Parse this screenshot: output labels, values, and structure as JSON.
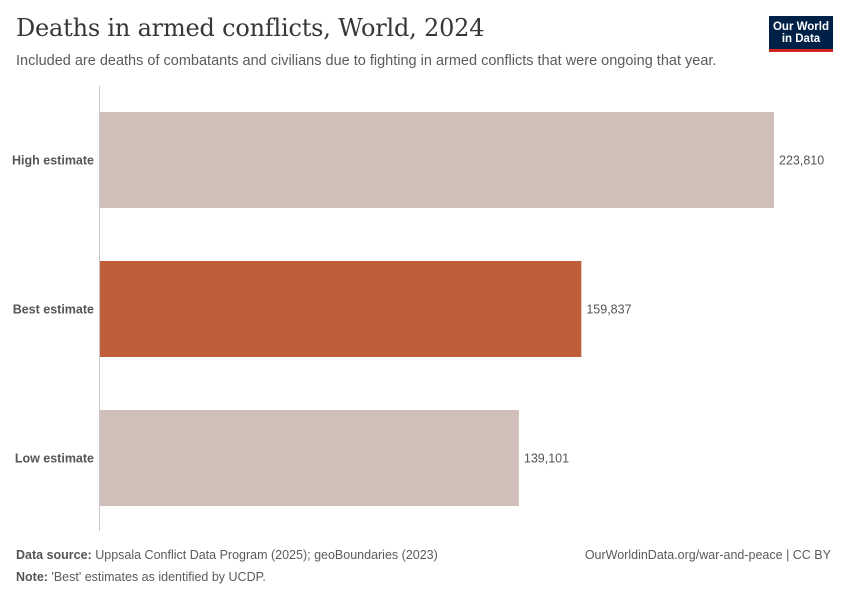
{
  "header": {
    "title": "Deaths in armed conflicts, World, 2024",
    "subtitle": "Included are deaths of combatants and civilians due to fighting in armed conflicts that were ongoing that year.",
    "logo_line1": "Our World",
    "logo_line2": "in Data"
  },
  "chart_data": {
    "type": "bar",
    "orientation": "horizontal",
    "categories": [
      "High estimate",
      "Best estimate",
      "Low estimate"
    ],
    "values": [
      223810,
      159837,
      139101
    ],
    "value_labels": [
      "223,810",
      "159,837",
      "139,101"
    ],
    "colors": [
      "#cfbfb8",
      "#c05e3a",
      "#cfbfb8"
    ],
    "xlim": [
      0,
      223810
    ],
    "grid": false
  },
  "footer": {
    "source_label": "Data source:",
    "source_text": "Uppsala Conflict Data Program (2025); geoBoundaries (2023)",
    "note_label": "Note:",
    "note_text": "'Best' estimates as identified by UCDP.",
    "credit": "OurWorldinData.org/war-and-peace | CC BY"
  }
}
